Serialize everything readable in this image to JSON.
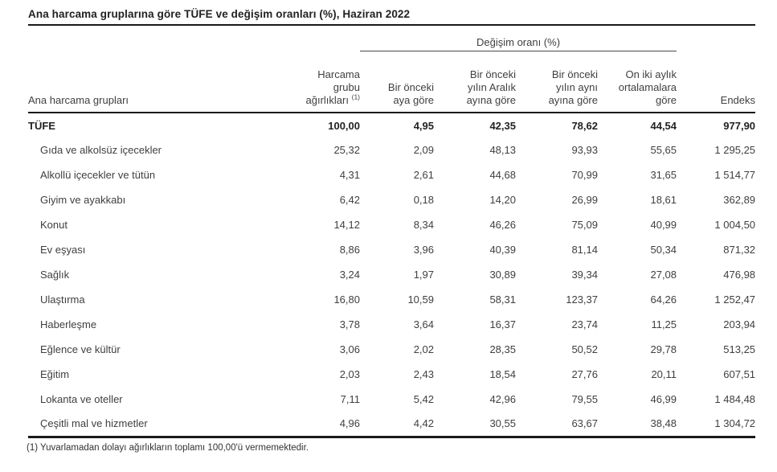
{
  "title": "Ana harcama gruplarına göre TÜFE ve değişim oranları (%), Haziran 2022",
  "table": {
    "group_header": "Değişim oranı (%)",
    "columns": {
      "label": "Ana harcama grupları",
      "weight": "Harcama\ngrubu\nağırlıkları",
      "weight_sup": "(1)",
      "monthly": "Bir önceki\naya göre",
      "since_december": "Bir önceki\nyılın Aralık\nayına göre",
      "year_over_year": "Bir önceki\nyılın aynı\nayına göre",
      "twelve_month_avg": "On iki aylık\nortalamalara\ngöre",
      "index": "Endeks"
    },
    "rows": [
      {
        "label": "TÜFE",
        "weight": "100,00",
        "monthly": "4,95",
        "since_december": "42,35",
        "year_over_year": "78,62",
        "twelve_month_avg": "44,54",
        "index": "977,90",
        "emphasis": true
      },
      {
        "label": "Gıda ve alkolsüz içecekler",
        "weight": "25,32",
        "monthly": "2,09",
        "since_december": "48,13",
        "year_over_year": "93,93",
        "twelve_month_avg": "55,65",
        "index": "1 295,25"
      },
      {
        "label": "Alkollü içecekler ve tütün",
        "weight": "4,31",
        "monthly": "2,61",
        "since_december": "44,68",
        "year_over_year": "70,99",
        "twelve_month_avg": "31,65",
        "index": "1 514,77"
      },
      {
        "label": "Giyim ve ayakkabı",
        "weight": "6,42",
        "monthly": "0,18",
        "since_december": "14,20",
        "year_over_year": "26,99",
        "twelve_month_avg": "18,61",
        "index": "362,89"
      },
      {
        "label": "Konut",
        "weight": "14,12",
        "monthly": "8,34",
        "since_december": "46,26",
        "year_over_year": "75,09",
        "twelve_month_avg": "40,99",
        "index": "1 004,50"
      },
      {
        "label": "Ev eşyası",
        "weight": "8,86",
        "monthly": "3,96",
        "since_december": "40,39",
        "year_over_year": "81,14",
        "twelve_month_avg": "50,34",
        "index": "871,32"
      },
      {
        "label": "Sağlık",
        "weight": "3,24",
        "monthly": "1,97",
        "since_december": "30,89",
        "year_over_year": "39,34",
        "twelve_month_avg": "27,08",
        "index": "476,98"
      },
      {
        "label": "Ulaştırma",
        "weight": "16,80",
        "monthly": "10,59",
        "since_december": "58,31",
        "year_over_year": "123,37",
        "twelve_month_avg": "64,26",
        "index": "1 252,47"
      },
      {
        "label": "Haberleşme",
        "weight": "3,78",
        "monthly": "3,64",
        "since_december": "16,37",
        "year_over_year": "23,74",
        "twelve_month_avg": "11,25",
        "index": "203,94"
      },
      {
        "label": "Eğlence ve kültür",
        "weight": "3,06",
        "monthly": "2,02",
        "since_december": "28,35",
        "year_over_year": "50,52",
        "twelve_month_avg": "29,78",
        "index": "513,25"
      },
      {
        "label": "Eğitim",
        "weight": "2,03",
        "monthly": "2,43",
        "since_december": "18,54",
        "year_over_year": "27,76",
        "twelve_month_avg": "20,11",
        "index": "607,51"
      },
      {
        "label": "Lokanta ve oteller",
        "weight": "7,11",
        "monthly": "5,42",
        "since_december": "42,96",
        "year_over_year": "79,55",
        "twelve_month_avg": "46,99",
        "index": "1 484,48"
      },
      {
        "label": "Çeşitli mal ve hizmetler",
        "weight": "4,96",
        "monthly": "4,42",
        "since_december": "30,55",
        "year_over_year": "63,67",
        "twelve_month_avg": "38,48",
        "index": "1 304,72"
      }
    ]
  },
  "footnote": "(1) Yuvarlamadan dolayı ağırlıkların toplamı 100,00'ü vermemektedir."
}
